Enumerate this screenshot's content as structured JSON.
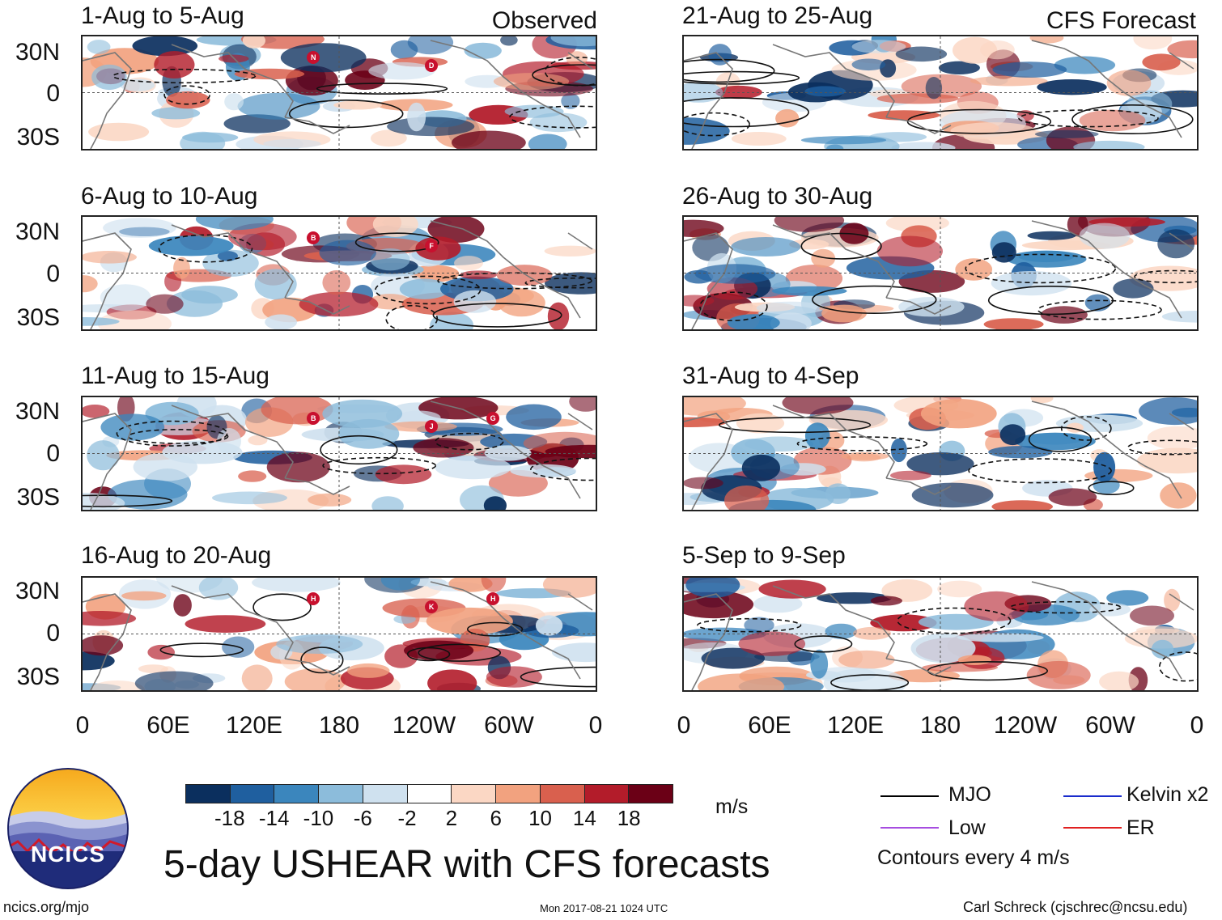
{
  "left_header": "Observed",
  "right_header": "CFS Forecast",
  "panels_left": [
    {
      "title": "1-Aug to 5-Aug",
      "storms": [
        "N",
        "D"
      ]
    },
    {
      "title": "6-Aug to 10-Aug",
      "storms": [
        "B",
        "F"
      ]
    },
    {
      "title": "11-Aug to 15-Aug",
      "storms": [
        "B",
        "J",
        "G"
      ]
    },
    {
      "title": "16-Aug to 20-Aug",
      "storms": [
        "H",
        "K",
        "H"
      ]
    }
  ],
  "panels_right": [
    {
      "title": "21-Aug to 25-Aug"
    },
    {
      "title": "26-Aug to 30-Aug"
    },
    {
      "title": "31-Aug to 4-Sep"
    },
    {
      "title": "5-Sep to 9-Sep"
    }
  ],
  "lat_labels": [
    "30N",
    "0",
    "30S"
  ],
  "lon_labels": [
    "0",
    "60E",
    "120E",
    "180",
    "120W",
    "60W",
    "0"
  ],
  "colorbar": {
    "colors": [
      "#0b2f5e",
      "#1f5f9f",
      "#3b86bd",
      "#8cbcdb",
      "#cfe1ef",
      "#ffffff",
      "#fbd7c4",
      "#f2a27f",
      "#d9604e",
      "#b31c2a",
      "#6b0016"
    ],
    "labels": [
      "-18",
      "-14",
      "-10",
      "-6",
      "-2",
      "2",
      "6",
      "10",
      "14",
      "18"
    ],
    "units": "m/s"
  },
  "legend": {
    "mjo": "MJO",
    "kelvin": "Kelvin x2",
    "low": "Low",
    "er": "ER",
    "contours": "Contours every 4 m/s",
    "mjo_color": "#000000",
    "kelvin_color": "#1a2ccc",
    "low_color": "#a64de0",
    "er_color": "#e02020"
  },
  "logo_text": "NCICS",
  "main_title": "5-day USHEAR with CFS forecasts",
  "footer": {
    "url": "ncics.org/mjo",
    "timestamp": "Mon 2017-08-21 1024 UTC",
    "credit": "Carl Schreck (cjschrec@ncsu.edu)"
  }
}
